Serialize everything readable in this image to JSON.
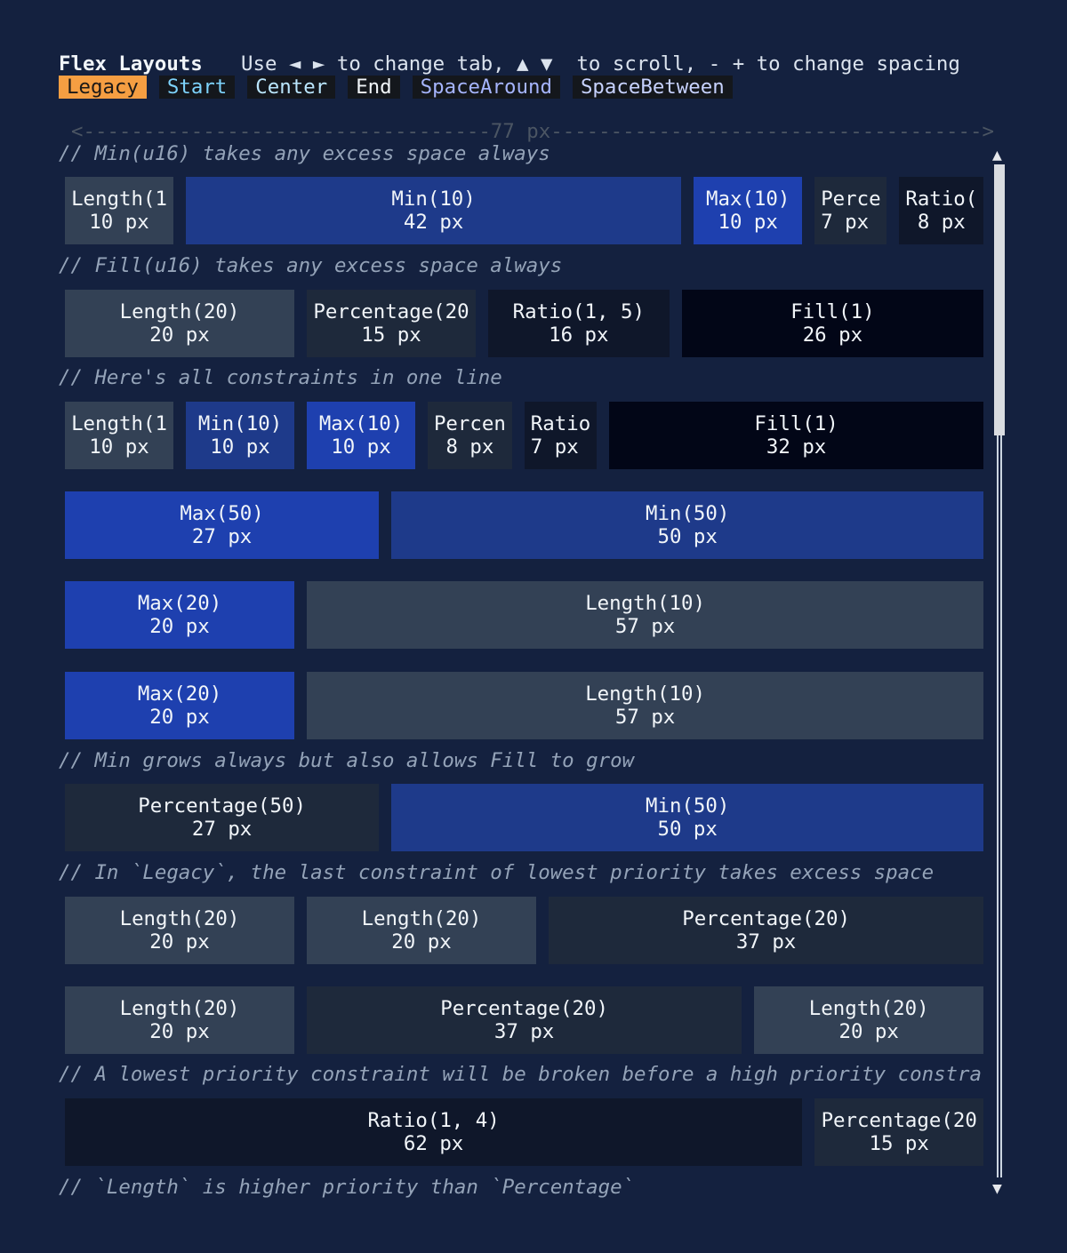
{
  "header": {
    "title": "Flex Layouts",
    "help": "Use ◄ ► to change tab, ▲ ▼  to scroll, - + to change spacing"
  },
  "tabs": [
    {
      "label": "Legacy",
      "selected": true,
      "color": "#1c1917",
      "bg": "#f59e42"
    },
    {
      "label": "Start",
      "selected": false,
      "color": "#7dd3fc"
    },
    {
      "label": "Center",
      "selected": false,
      "color": "#bae6fd"
    },
    {
      "label": "End",
      "selected": false,
      "color": "#f1f5f9"
    },
    {
      "label": "SpaceAround",
      "selected": false,
      "color": "#a5b4fc"
    },
    {
      "label": "SpaceBetween",
      "selected": false,
      "color": "#c7d2fe"
    }
  ],
  "ruler": "<----------------------------------77 px------------------------------------>",
  "colors": {
    "Length": "#334155",
    "Min": "#1e3a8a",
    "Max": "#1e40af",
    "Percentage": "#1e293b",
    "Ratio": "#0f172a",
    "Fill": "#020617"
  },
  "comments": [
    "// Min(u16) takes any excess space always",
    "// Fill(u16) takes any excess space always",
    "// Here's all constraints in one line",
    "// Min grows always but also allows Fill to grow",
    "// In `Legacy`, the last constraint of lowest priority takes excess space",
    "// A lowest priority constraint will be broken before a high priority constra",
    "// `Length` is higher priority than `Percentage`"
  ],
  "rows": [
    [
      {
        "kind": "Length",
        "label": "Length(1",
        "value": "10 px",
        "cells": 10
      },
      {
        "kind": "Min",
        "label": "Min(10)",
        "value": "42 px",
        "cells": 42
      },
      {
        "kind": "Max",
        "label": "Max(10)",
        "value": "10 px",
        "cells": 10
      },
      {
        "kind": "Percentage",
        "label": "Perce",
        "value": "7 px",
        "cells": 7,
        "align": "left"
      },
      {
        "kind": "Ratio",
        "label": "Ratio(",
        "value": "8 px",
        "cells": 8
      }
    ],
    [
      {
        "kind": "Length",
        "label": "Length(20)",
        "value": "20 px",
        "cells": 20
      },
      {
        "kind": "Percentage",
        "label": "Percentage(20",
        "value": "15 px",
        "cells": 15
      },
      {
        "kind": "Ratio",
        "label": "Ratio(1, 5)",
        "value": "16 px",
        "cells": 16
      },
      {
        "kind": "Fill",
        "label": "Fill(1)",
        "value": "26 px",
        "cells": 26
      }
    ],
    [
      {
        "kind": "Length",
        "label": "Length(1",
        "value": "10 px",
        "cells": 10
      },
      {
        "kind": "Min",
        "label": "Min(10)",
        "value": "10 px",
        "cells": 10
      },
      {
        "kind": "Max",
        "label": "Max(10)",
        "value": "10 px",
        "cells": 10
      },
      {
        "kind": "Percentage",
        "label": "Percen",
        "value": "8 px",
        "cells": 8
      },
      {
        "kind": "Ratio",
        "label": "Ratio",
        "value": "7 px",
        "cells": 7,
        "align": "left"
      },
      {
        "kind": "Fill",
        "label": "Fill(1)",
        "value": "32 px",
        "cells": 32
      }
    ],
    [
      {
        "kind": "Max",
        "label": "Max(50)",
        "value": "27 px",
        "cells": 27
      },
      {
        "kind": "Min",
        "label": "Min(50)",
        "value": "50 px",
        "cells": 50
      }
    ],
    [
      {
        "kind": "Max",
        "label": "Max(20)",
        "value": "20 px",
        "cells": 20
      },
      {
        "kind": "Length",
        "label": "Length(10)",
        "value": "57 px",
        "cells": 57
      }
    ],
    [
      {
        "kind": "Max",
        "label": "Max(20)",
        "value": "20 px",
        "cells": 20
      },
      {
        "kind": "Length",
        "label": "Length(10)",
        "value": "57 px",
        "cells": 57
      }
    ],
    [
      {
        "kind": "Percentage",
        "label": "Percentage(50)",
        "value": "27 px",
        "cells": 27
      },
      {
        "kind": "Min",
        "label": "Min(50)",
        "value": "50 px",
        "cells": 50
      }
    ],
    [
      {
        "kind": "Length",
        "label": "Length(20)",
        "value": "20 px",
        "cells": 20
      },
      {
        "kind": "Length",
        "label": "Length(20)",
        "value": "20 px",
        "cells": 20
      },
      {
        "kind": "Percentage",
        "label": "Percentage(20)",
        "value": "37 px",
        "cells": 37
      }
    ],
    [
      {
        "kind": "Length",
        "label": "Length(20)",
        "value": "20 px",
        "cells": 20
      },
      {
        "kind": "Percentage",
        "label": "Percentage(20)",
        "value": "37 px",
        "cells": 37
      },
      {
        "kind": "Length",
        "label": "Length(20)",
        "value": "20 px",
        "cells": 20
      }
    ],
    [
      {
        "kind": "Ratio",
        "label": "Ratio(1, 4)",
        "value": "62 px",
        "cells": 62
      },
      {
        "kind": "Percentage",
        "label": "Percentage(20",
        "value": "15 px",
        "cells": 15
      }
    ]
  ],
  "scrollbar": {
    "position": 0
  }
}
